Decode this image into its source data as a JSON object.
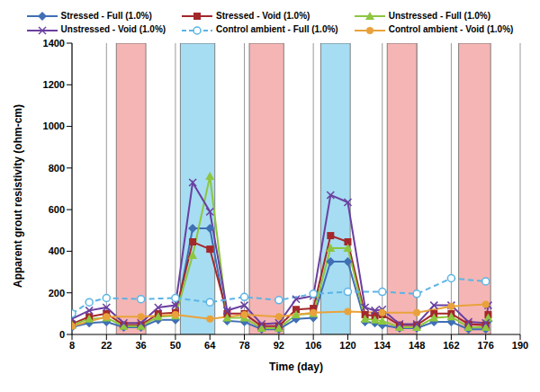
{
  "chart_data": {
    "type": "line",
    "x_label": "Time (day)",
    "y_label": "Apparent grout resistivity (ohm-cm)",
    "xlim": [
      8,
      190
    ],
    "xticks": [
      8,
      22,
      36,
      50,
      64,
      78,
      92,
      106,
      120,
      134,
      148,
      162,
      176,
      190
    ],
    "ylim": [
      0,
      1400
    ],
    "yticks": [
      0,
      200,
      400,
      600,
      800,
      1000,
      1200,
      1400
    ],
    "grid": true,
    "legend": "top",
    "shaded_regions": [
      {
        "x": [
          26,
          38
        ],
        "color": "#f5b5b5"
      },
      {
        "x": [
          52,
          66
        ],
        "color": "#a6ddf2"
      },
      {
        "x": [
          80,
          94
        ],
        "color": "#f5b5b5"
      },
      {
        "x": [
          109,
          121
        ],
        "color": "#a6ddf2"
      },
      {
        "x": [
          136,
          148
        ],
        "color": "#f5b5b5"
      },
      {
        "x": [
          165,
          178
        ],
        "color": "#f5b5b5"
      }
    ],
    "series": [
      {
        "name": "Stressed - Full (1.0%)",
        "color": "#3f6fb5",
        "marker": "diamond",
        "line_style": "solid",
        "x": [
          8,
          15,
          22,
          29,
          36,
          43,
          50,
          57,
          64,
          71,
          78,
          85,
          92,
          99,
          106,
          113,
          120,
          127,
          131,
          134,
          141,
          148,
          155,
          162,
          169,
          176,
          177
        ],
        "values": [
          35,
          55,
          60,
          35,
          35,
          70,
          70,
          510,
          510,
          65,
          60,
          25,
          25,
          75,
          80,
          350,
          350,
          60,
          55,
          45,
          30,
          30,
          60,
          60,
          25,
          25,
          65
        ]
      },
      {
        "name": "Stressed - Void (1.0%)",
        "color": "#a3282b",
        "marker": "square",
        "line_style": "solid",
        "x": [
          8,
          15,
          22,
          29,
          36,
          43,
          50,
          57,
          64,
          71,
          78,
          85,
          92,
          99,
          106,
          113,
          120,
          127,
          131,
          134,
          141,
          148,
          155,
          162,
          169,
          176,
          177
        ],
        "values": [
          50,
          85,
          100,
          45,
          45,
          100,
          105,
          445,
          410,
          100,
          100,
          40,
          40,
          120,
          125,
          475,
          445,
          95,
          90,
          95,
          45,
          45,
          100,
          100,
          50,
          45,
          95
        ]
      },
      {
        "name": "Unstressed - Full (1.0%)",
        "color": "#8dc63f",
        "marker": "triangle",
        "line_style": "solid",
        "x": [
          8,
          15,
          22,
          29,
          36,
          43,
          50,
          57,
          64,
          71,
          78,
          85,
          92,
          99,
          106,
          113,
          120,
          127,
          131,
          134,
          141,
          148,
          155,
          162,
          169,
          176,
          177
        ],
        "values": [
          45,
          75,
          80,
          40,
          40,
          85,
          90,
          380,
          760,
          80,
          80,
          30,
          30,
          95,
          100,
          415,
          415,
          75,
          70,
          65,
          35,
          35,
          80,
          85,
          35,
          35,
          80
        ]
      },
      {
        "name": "Unstressed - Void (1.0%)",
        "color": "#6a3fa0",
        "marker": "x",
        "line_style": "solid",
        "x": [
          8,
          15,
          22,
          29,
          36,
          43,
          50,
          57,
          64,
          71,
          78,
          85,
          92,
          99,
          106,
          113,
          120,
          127,
          131,
          134,
          141,
          148,
          155,
          162,
          169,
          176,
          177
        ],
        "values": [
          75,
          115,
          130,
          55,
          55,
          130,
          140,
          730,
          590,
          115,
          140,
          50,
          55,
          170,
          185,
          670,
          635,
          130,
          115,
          120,
          50,
          50,
          140,
          140,
          60,
          55,
          140
        ]
      },
      {
        "name": "Control ambient - Full (1.0%)",
        "color": "#5ab4e5",
        "marker": "open_circle",
        "line_style": "dashed",
        "x": [
          8,
          15,
          22,
          36,
          50,
          64,
          78,
          92,
          106,
          120,
          134,
          148,
          162,
          176
        ],
        "values": [
          100,
          155,
          175,
          170,
          175,
          155,
          180,
          165,
          195,
          205,
          205,
          195,
          270,
          255
        ]
      },
      {
        "name": "Control ambient - Void (1.0%)",
        "color": "#e9a23b",
        "marker": "circle",
        "line_style": "solid",
        "x": [
          8,
          22,
          36,
          50,
          64,
          78,
          92,
          106,
          120,
          134,
          148,
          162,
          176
        ],
        "values": [
          40,
          85,
          85,
          95,
          75,
          95,
          85,
          105,
          110,
          105,
          105,
          135,
          145
        ]
      }
    ]
  }
}
